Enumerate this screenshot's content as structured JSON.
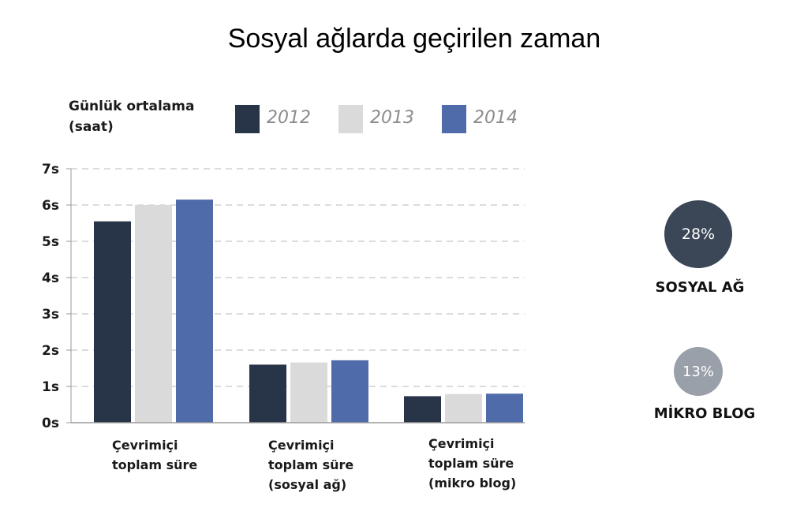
{
  "chart_data": {
    "type": "bar",
    "title": "Sosyal ağlarda geçirilen zaman",
    "ylabel": "Günlük ortalama (saat)",
    "xlabel": "",
    "ylim": [
      0,
      7
    ],
    "yticks": [
      "0s",
      "1s",
      "2s",
      "3s",
      "4s",
      "5s",
      "6s",
      "7s"
    ],
    "grid": true,
    "legend_position": "top",
    "categories": [
      "Çevrimiçi toplam süre",
      "Çevrimiçi toplam süre (sosyal ağ)",
      "Çevrimiçi toplam süre (mikro blog)"
    ],
    "series": [
      {
        "name": "2012",
        "color": "#283447",
        "values": [
          5.55,
          1.6,
          0.73
        ]
      },
      {
        "name": "2013",
        "color": "#dadada",
        "values": [
          6.0,
          1.66,
          0.79
        ]
      },
      {
        "name": "2014",
        "color": "#4f6ba9",
        "values": [
          6.15,
          1.72,
          0.8
        ]
      }
    ]
  },
  "category_lines": [
    [
      "Çevrimiçi",
      "toplam süre"
    ],
    [
      "Çevrimiçi",
      "toplam süre",
      "(sosyal ağ)"
    ],
    [
      "Çevrimiçi",
      "toplam süre",
      "(mikro blog)"
    ]
  ],
  "side_stats": [
    {
      "value": "28%",
      "label": "SOSYAL AĞ",
      "color": "#3b4657"
    },
    {
      "value": "13%",
      "label": "MİKRO BLOG",
      "color": "#9aa0a9"
    }
  ]
}
